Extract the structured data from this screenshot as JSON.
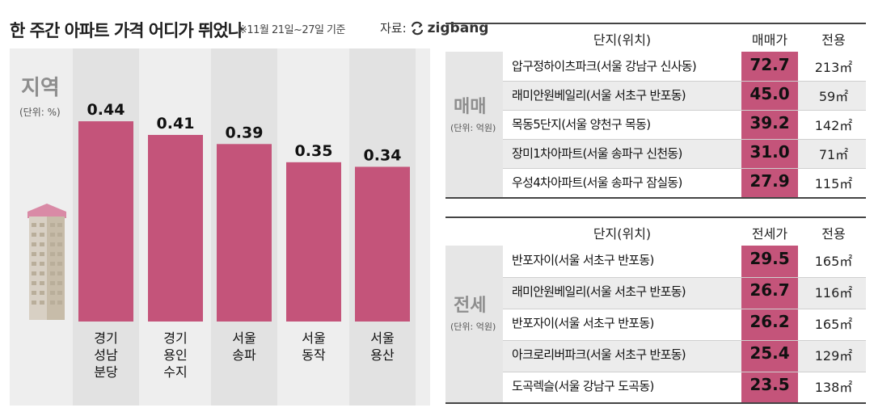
{
  "header": {
    "title": "한 주간 아파트 가격 어디가 뛰었나",
    "note": "※11월 21일~27일 기준",
    "source_label": "자료:",
    "source_brand": "zigbang"
  },
  "colors": {
    "bar": "#c4547a",
    "panel": "#eeeeee",
    "stripe": "#e2e2e2",
    "label_gray": "#8e8e8e"
  },
  "chart_data": {
    "type": "bar",
    "title": "지역",
    "unit": "(단위: %)",
    "categories": [
      [
        "경기",
        "성남",
        "분당"
      ],
      [
        "경기",
        "용인",
        "수지"
      ],
      [
        "서울",
        "송파"
      ],
      [
        "서울",
        "동작"
      ],
      [
        "서울",
        "용산"
      ]
    ],
    "values": [
      0.44,
      0.41,
      0.39,
      0.35,
      0.34
    ],
    "value_labels": [
      "0.44",
      "0.41",
      "0.39",
      "0.35",
      "0.34"
    ],
    "ylim": [
      0,
      0.6
    ]
  },
  "sale_table": {
    "category": "매매",
    "unit": "(단위: 억원)",
    "headers": {
      "name": "단지(위치)",
      "price": "매매가",
      "area": "전용"
    },
    "rows": [
      {
        "name": "압구정하이츠파크(서울 강남구 신사동)",
        "price": "72.7",
        "area": "213㎡"
      },
      {
        "name": "래미안원베일리(서울 서초구 반포동)",
        "price": "45.0",
        "area": "59㎡"
      },
      {
        "name": "목동5단지(서울 양천구 목동)",
        "price": "39.2",
        "area": "142㎡"
      },
      {
        "name": "장미1차아파트(서울 송파구 신천동)",
        "price": "31.0",
        "area": "71㎡"
      },
      {
        "name": "우성4차아파트(서울 송파구 잠실동)",
        "price": "27.9",
        "area": "115㎡"
      }
    ]
  },
  "lease_table": {
    "category": "전세",
    "unit": "(단위: 억원)",
    "headers": {
      "name": "단지(위치)",
      "price": "전세가",
      "area": "전용"
    },
    "rows": [
      {
        "name": "반포자이(서울 서초구 반포동)",
        "price": "29.5",
        "area": "165㎡"
      },
      {
        "name": "래미안원베일리(서울 서초구 반포동)",
        "price": "26.7",
        "area": "116㎡"
      },
      {
        "name": "반포자이(서울 서초구 반포동)",
        "price": "26.2",
        "area": "165㎡"
      },
      {
        "name": "아크로리버파크(서울 서초구 반포동)",
        "price": "25.4",
        "area": "129㎡"
      },
      {
        "name": "도곡렉슬(서울 강남구 도곡동)",
        "price": "23.5",
        "area": "138㎡"
      }
    ]
  }
}
